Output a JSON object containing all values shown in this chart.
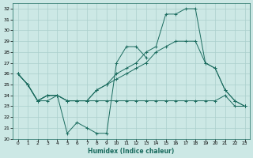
{
  "xlabel": "Humidex (Indice chaleur)",
  "ylabel": "",
  "xlim": [
    -0.5,
    23.5
  ],
  "ylim": [
    20,
    32.5
  ],
  "xticks": [
    0,
    1,
    2,
    3,
    4,
    5,
    6,
    7,
    8,
    9,
    10,
    11,
    12,
    13,
    14,
    15,
    16,
    17,
    18,
    19,
    20,
    21,
    22,
    23
  ],
  "yticks": [
    20,
    21,
    22,
    23,
    24,
    25,
    26,
    27,
    28,
    29,
    30,
    31,
    32
  ],
  "bg_color": "#cce8e5",
  "line_color": "#1a6b5e",
  "grid_color": "#aacfcc",
  "line1_x": [
    0,
    1,
    2,
    3,
    4,
    5,
    6,
    7,
    8,
    9,
    10,
    11,
    12,
    13
  ],
  "line1_y": [
    26,
    25,
    23.5,
    24,
    24,
    20.5,
    21.5,
    21,
    20.5,
    20.5,
    27,
    28.5,
    28.5,
    27.5
  ],
  "line2_x": [
    0,
    1,
    2,
    3,
    4,
    5,
    6,
    7,
    8,
    9,
    10,
    11,
    12,
    13,
    14,
    15,
    16,
    17,
    18,
    19,
    20,
    21,
    22,
    23
  ],
  "line2_y": [
    26,
    25,
    23.5,
    24,
    24,
    23.5,
    23.5,
    23.5,
    24.5,
    25,
    26,
    26.5,
    27,
    28,
    28.5,
    31.5,
    31.5,
    32,
    32,
    27,
    26.5,
    24.5,
    23.5,
    23
  ],
  "line3_x": [
    0,
    1,
    2,
    3,
    4,
    5,
    6,
    7,
    8,
    9,
    10,
    11,
    12,
    13,
    14,
    15,
    16,
    17,
    18,
    19,
    20,
    21,
    22,
    23
  ],
  "line3_y": [
    26,
    25,
    23.5,
    24,
    24,
    23.5,
    23.5,
    23.5,
    24.5,
    25,
    25.5,
    26,
    26.5,
    27,
    28,
    28.5,
    29,
    29,
    29,
    27,
    26.5,
    24.5,
    23.5,
    23
  ],
  "line4_x": [
    0,
    1,
    2,
    3,
    4,
    5,
    6,
    7,
    8,
    9,
    10,
    11,
    12,
    13,
    14,
    15,
    16,
    17,
    18,
    19,
    20,
    21,
    22,
    23
  ],
  "line4_y": [
    26,
    25,
    23.5,
    23.5,
    24,
    23.5,
    23.5,
    23.5,
    23.5,
    23.5,
    23.5,
    23.5,
    23.5,
    23.5,
    23.5,
    23.5,
    23.5,
    23.5,
    23.5,
    23.5,
    23.5,
    24,
    23,
    23
  ]
}
